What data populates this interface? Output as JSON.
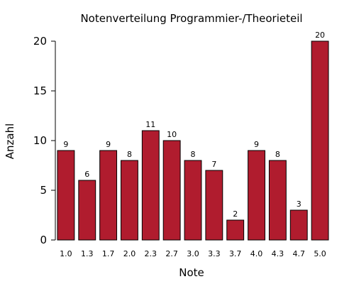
{
  "chart_data": {
    "type": "bar",
    "title": "Notenverteilung Programmier-/Theorieteil",
    "xlabel": "Note",
    "ylabel": "Anzahl",
    "categories": [
      "1.0",
      "1.3",
      "1.7",
      "2.0",
      "2.3",
      "2.7",
      "3.0",
      "3.3",
      "3.7",
      "4.0",
      "4.3",
      "4.7",
      "5.0"
    ],
    "values": [
      9,
      6,
      9,
      8,
      11,
      10,
      8,
      7,
      2,
      9,
      8,
      3,
      20
    ],
    "ylim": [
      0,
      20
    ],
    "yticks": [
      0,
      5,
      10,
      15,
      20
    ],
    "bar_color": "#b01c2e",
    "grid": false,
    "legend": "none"
  }
}
